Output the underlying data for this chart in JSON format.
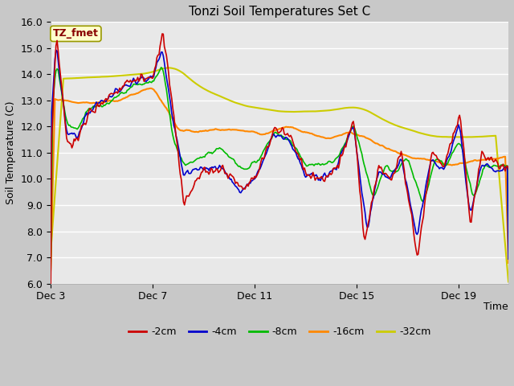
{
  "title": "Tonzi Soil Temperatures Set C",
  "xlabel": "Time",
  "ylabel": "Soil Temperature (C)",
  "ylim": [
    6.0,
    16.0
  ],
  "yticks": [
    6.0,
    7.0,
    8.0,
    9.0,
    10.0,
    11.0,
    12.0,
    13.0,
    14.0,
    15.0,
    16.0
  ],
  "xtick_labels": [
    "Dec 3",
    "Dec 7",
    "Dec 11",
    "Dec 15",
    "Dec 19"
  ],
  "xtick_positions": [
    0,
    96,
    192,
    288,
    384
  ],
  "fig_bg": "#d0d0d0",
  "plot_bg": "#e8e8e8",
  "grid_color": "#ffffff",
  "line_colors": {
    "-2cm": "#cc0000",
    "-4cm": "#0000cc",
    "-8cm": "#00bb00",
    "-16cm": "#ff8800",
    "-32cm": "#cccc00"
  },
  "annotation": {
    "text": "TZ_fmet",
    "text_color": "#880000",
    "box_facecolor": "#ffffcc",
    "box_edgecolor": "#999900"
  },
  "total_points": 432,
  "figsize": [
    6.4,
    4.8
  ],
  "dpi": 100
}
